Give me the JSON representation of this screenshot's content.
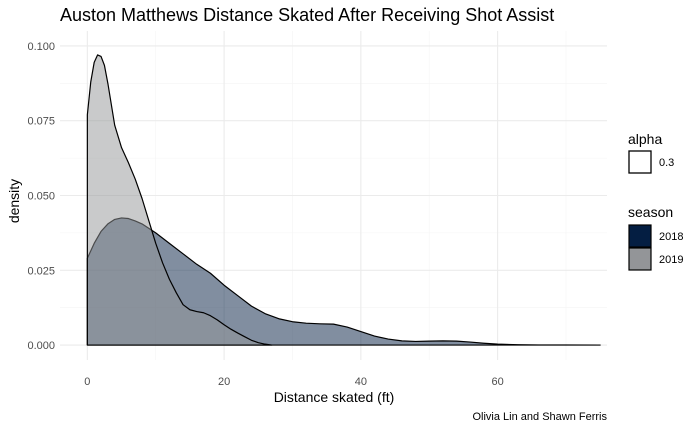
{
  "chart_data": {
    "type": "area",
    "title": "Auston Matthews Distance Skated After Receiving Shot Assist",
    "xlabel": "Distance skated (ft)",
    "ylabel": "density",
    "caption": "Olivia Lin and Shawn Ferris",
    "xlim": [
      -4,
      76
    ],
    "ylim": [
      -0.005,
      0.105
    ],
    "x_ticks": [
      0,
      20,
      40,
      60
    ],
    "x_tick_labels": [
      "0",
      "20",
      "40",
      "60"
    ],
    "y_ticks": [
      0,
      0.025,
      0.05,
      0.075,
      0.1
    ],
    "y_tick_labels": [
      "0.000",
      "0.025",
      "0.050",
      "0.075",
      "0.100"
    ],
    "grid": true,
    "legend_position": "right",
    "legend": {
      "alpha": {
        "title": "alpha",
        "items": [
          {
            "label": "0.3"
          }
        ]
      },
      "season": {
        "title": "season",
        "items": [
          {
            "label": "2018",
            "color": "#041E42"
          },
          {
            "label": "2019",
            "color": "#939598"
          }
        ]
      }
    },
    "series": [
      {
        "name": "2018",
        "color": "#041E42",
        "x": [
          0,
          1,
          2,
          3,
          4,
          5,
          6,
          7,
          8,
          10,
          12,
          14,
          16,
          18,
          20,
          22,
          24,
          26,
          28,
          30,
          32,
          34,
          36,
          38,
          40,
          42,
          44,
          46,
          48,
          50,
          52,
          54,
          56,
          58,
          60,
          63,
          66,
          70,
          75
        ],
        "y": [
          0.029,
          0.034,
          0.038,
          0.0405,
          0.042,
          0.0425,
          0.0423,
          0.0415,
          0.0405,
          0.0375,
          0.034,
          0.0305,
          0.027,
          0.024,
          0.02,
          0.0165,
          0.013,
          0.0105,
          0.0088,
          0.0078,
          0.0073,
          0.0071,
          0.007,
          0.006,
          0.0045,
          0.003,
          0.002,
          0.0014,
          0.0012,
          0.0013,
          0.0014,
          0.0013,
          0.001,
          0.0006,
          0.0003,
          0.0001,
          3e-05,
          1e-05,
          0.0
        ]
      },
      {
        "name": "2019",
        "color": "#939598",
        "x": [
          0,
          0.5,
          1,
          1.5,
          2,
          2.5,
          3,
          4,
          5,
          6,
          7,
          8,
          9,
          10,
          11,
          12,
          13,
          14,
          15,
          16,
          17,
          18,
          19,
          20,
          21,
          22,
          23,
          24,
          25,
          26,
          27
        ],
        "y": [
          0.077,
          0.088,
          0.0945,
          0.097,
          0.0965,
          0.0935,
          0.0875,
          0.0735,
          0.066,
          0.061,
          0.0555,
          0.049,
          0.0415,
          0.034,
          0.0275,
          0.022,
          0.0175,
          0.0135,
          0.0118,
          0.0112,
          0.0108,
          0.0098,
          0.0084,
          0.0068,
          0.0053,
          0.004,
          0.0028,
          0.0016,
          0.0008,
          0.0003,
          0.0
        ]
      }
    ]
  }
}
